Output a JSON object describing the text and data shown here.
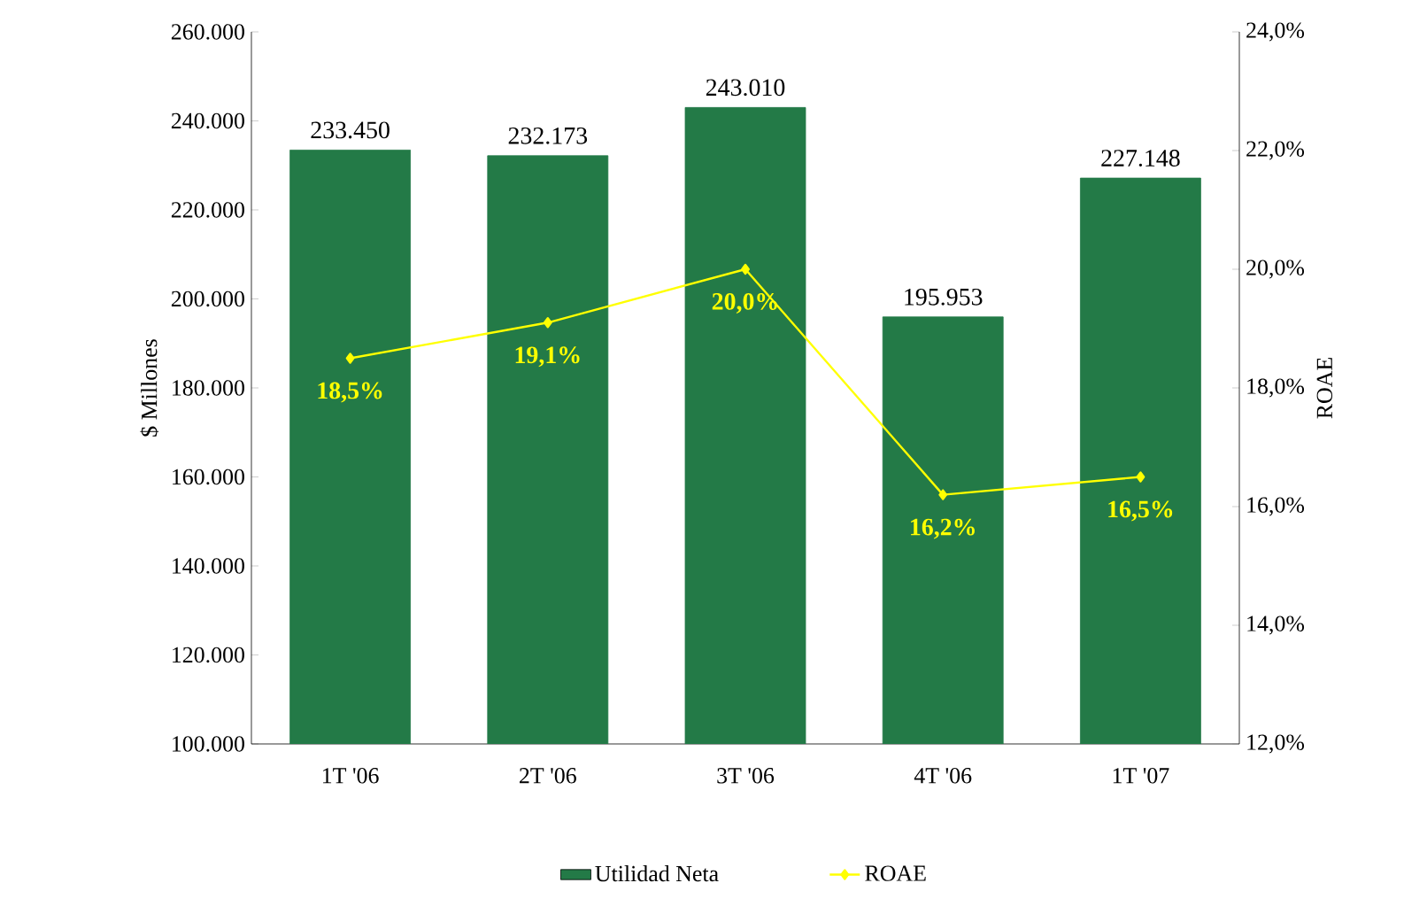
{
  "chart_data": {
    "type": "bar",
    "categories": [
      "1T '06",
      "2T '06",
      "3T '06",
      "4T '06",
      "1T '07"
    ],
    "ylabel": "$ Millones",
    "y2label": "ROAE",
    "series": [
      {
        "name": "Utilidad Neta",
        "color": "#237a47",
        "values": [
          233450,
          232173,
          243010,
          195953,
          227148
        ],
        "value_labels": [
          "233.450",
          "232.173",
          "243.010",
          "195.953",
          "227.148"
        ]
      },
      {
        "name": "ROAE",
        "type": "line",
        "axis": "y2",
        "color": "#ffff00",
        "marker": "diamond",
        "line_style": "solid",
        "values": [
          18.5,
          19.1,
          20.0,
          16.2,
          16.5
        ],
        "value_labels": [
          "18,5%",
          "19,1%",
          "20,0%",
          "16,2%",
          "16,5%"
        ]
      }
    ],
    "ylim": [
      100000,
      260000
    ],
    "yticks": [
      {
        "value": 100000,
        "label": "100.000"
      },
      {
        "value": 120000,
        "label": "120.000"
      },
      {
        "value": 140000,
        "label": "140.000"
      },
      {
        "value": 160000,
        "label": "160.000"
      },
      {
        "value": 180000,
        "label": "180.000"
      },
      {
        "value": 200000,
        "label": "200.000"
      },
      {
        "value": 220000,
        "label": "220.000"
      },
      {
        "value": 240000,
        "label": "240.000"
      },
      {
        "value": 260000,
        "label": "260.000"
      }
    ],
    "y2lim": [
      12,
      24
    ],
    "y2ticks": [
      {
        "value": 12,
        "label": "12,0%"
      },
      {
        "value": 14,
        "label": "14,0%"
      },
      {
        "value": 16,
        "label": "16,0%"
      },
      {
        "value": 18,
        "label": "18,0%"
      },
      {
        "value": 20,
        "label": "20,0%"
      },
      {
        "value": 22,
        "label": "22,0%"
      },
      {
        "value": 24,
        "label": "24,0%"
      }
    ],
    "legend": "bottom",
    "grid": false
  }
}
